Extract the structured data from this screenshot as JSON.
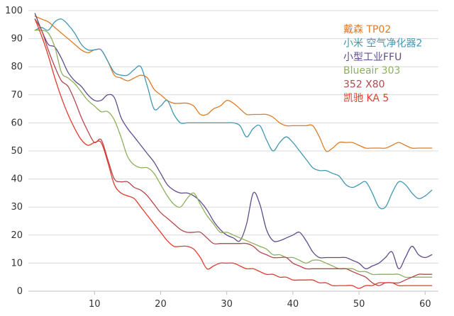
{
  "chart_data": {
    "type": "line",
    "title": "",
    "xlabel": "",
    "ylabel": "",
    "xlim": [
      0,
      62
    ],
    "ylim": [
      0,
      100
    ],
    "x_ticks": [
      10,
      20,
      30,
      40,
      50,
      60
    ],
    "y_ticks": [
      0,
      10,
      20,
      30,
      40,
      50,
      60,
      70,
      80,
      90,
      100
    ],
    "grid": "horizontal",
    "legend_position": "top-right",
    "x": [
      1,
      2,
      3,
      4,
      5,
      6,
      7,
      8,
      9,
      10,
      11,
      12,
      13,
      14,
      15,
      16,
      17,
      18,
      19,
      20,
      21,
      22,
      23,
      24,
      25,
      26,
      27,
      28,
      29,
      30,
      31,
      32,
      33,
      34,
      35,
      36,
      37,
      38,
      39,
      40,
      41,
      42,
      43,
      44,
      45,
      46,
      47,
      48,
      49,
      50,
      51,
      52,
      53,
      54,
      55,
      56,
      57,
      58,
      59,
      60,
      61
    ],
    "series": [
      {
        "name": "戴森 TP02",
        "color": "#E07B24",
        "values": [
          98,
          97,
          96,
          94,
          92,
          90,
          88,
          86,
          85,
          86,
          86,
          82,
          77,
          76,
          75,
          76,
          77,
          76,
          72,
          70,
          68,
          67,
          67,
          67,
          66,
          63,
          63,
          65,
          66,
          68,
          67,
          65,
          63,
          63,
          63,
          63,
          62,
          60,
          59,
          59,
          59,
          59,
          59,
          55,
          50,
          51,
          53,
          53,
          53,
          52,
          51,
          51,
          51,
          51,
          52,
          53,
          52,
          51,
          51,
          51,
          51
        ]
      },
      {
        "name": "小米 空气净化器2",
        "color": "#4197B4",
        "values": [
          93,
          94,
          93,
          96,
          97,
          95,
          92,
          88,
          86,
          86,
          86,
          82,
          78,
          77,
          77,
          79,
          80,
          73,
          65,
          66,
          68,
          63,
          60,
          60,
          60,
          60,
          60,
          60,
          60,
          60,
          60,
          59,
          55,
          58,
          59,
          54,
          50,
          53,
          55,
          53,
          50,
          47,
          44,
          43,
          43,
          42,
          41,
          38,
          37,
          38,
          39,
          35,
          30,
          30,
          35,
          39,
          38,
          35,
          33,
          34,
          36
        ]
      },
      {
        "name": "小型工业FFU",
        "color": "#5F4B8B",
        "values": [
          99,
          93,
          88,
          87,
          83,
          78,
          75,
          73,
          70,
          68,
          68,
          70,
          69,
          62,
          58,
          55,
          52,
          49,
          46,
          42,
          38,
          36,
          35,
          35,
          34,
          32,
          29,
          25,
          22,
          20,
          19,
          18,
          24,
          35,
          31,
          22,
          18,
          18,
          19,
          20,
          21,
          18,
          14,
          12,
          12,
          12,
          12,
          12,
          11,
          10,
          8,
          9,
          10,
          12,
          14,
          8,
          12,
          16,
          13,
          12,
          13
        ]
      },
      {
        "name": "Blueair 303",
        "color": "#8DAF5B",
        "values": [
          93,
          93,
          92,
          87,
          78,
          76,
          74,
          71,
          68,
          66,
          64,
          64,
          61,
          55,
          48,
          45,
          44,
          44,
          42,
          38,
          34,
          31,
          30,
          33,
          35,
          31,
          27,
          24,
          21,
          21,
          20,
          19,
          18,
          17,
          16,
          15,
          13,
          13,
          12,
          12,
          11,
          10,
          11,
          11,
          10,
          9,
          8,
          8,
          8,
          7,
          7,
          6,
          6,
          6,
          6,
          6,
          5,
          5,
          5,
          5,
          5
        ]
      },
      {
        "name": "352 X80",
        "color": "#B5474E",
        "values": [
          97,
          93,
          86,
          80,
          75,
          73,
          68,
          62,
          57,
          53,
          54,
          47,
          40,
          39,
          39,
          37,
          36,
          34,
          31,
          28,
          26,
          24,
          22,
          21,
          21,
          21,
          19,
          17,
          17,
          17,
          17,
          17,
          17,
          16,
          14,
          13,
          12,
          12,
          12,
          10,
          9,
          8,
          8,
          8,
          8,
          8,
          8,
          8,
          7,
          6,
          5,
          3,
          2,
          3,
          3,
          3,
          4,
          5,
          6,
          6,
          6
        ]
      },
      {
        "name": "凯驰 KA 5",
        "color": "#E33B2E",
        "values": [
          97,
          91,
          84,
          76,
          69,
          63,
          58,
          54,
          52,
          53,
          53,
          46,
          38,
          35,
          34,
          33,
          30,
          27,
          24,
          21,
          18,
          16,
          16,
          16,
          15,
          12,
          8,
          9,
          10,
          10,
          10,
          9,
          8,
          8,
          7,
          6,
          6,
          5,
          5,
          4,
          4,
          4,
          4,
          3,
          3,
          2,
          2,
          2,
          2,
          1,
          2,
          2,
          3,
          3,
          3,
          2,
          2,
          2,
          2,
          2,
          2
        ]
      }
    ]
  }
}
